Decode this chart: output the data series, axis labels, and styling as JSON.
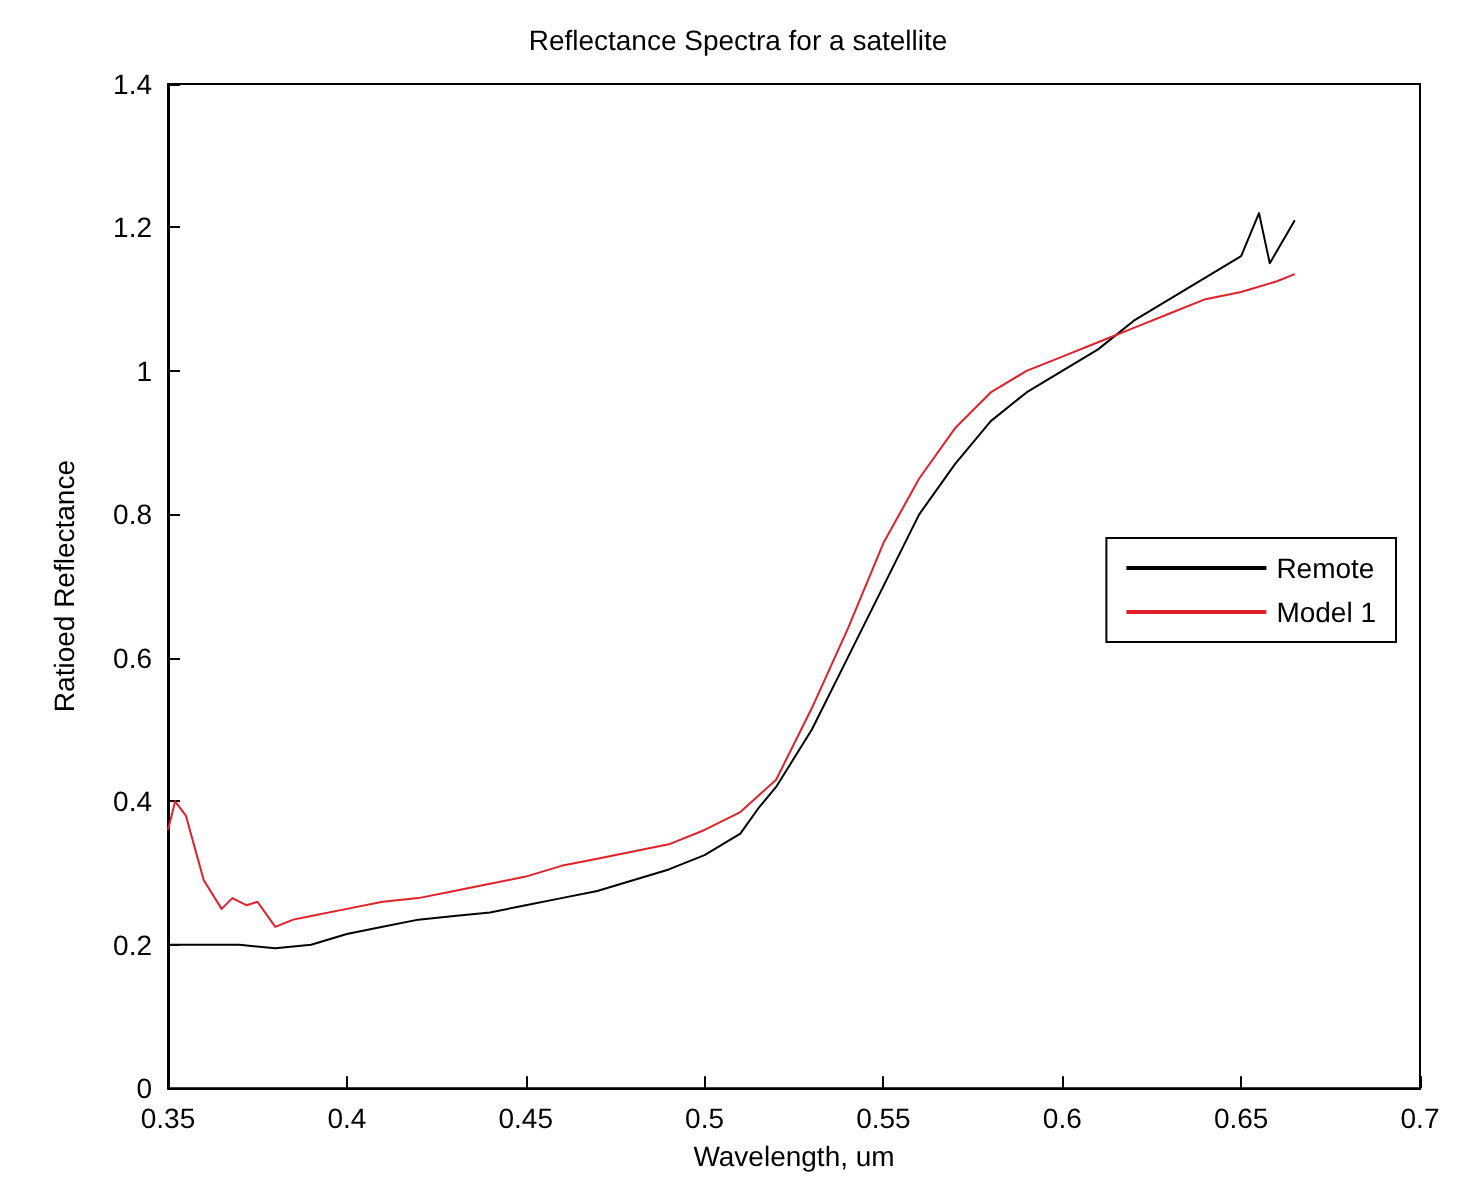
{
  "chart_data": {
    "type": "line",
    "title": "Reflectance Spectra for a satellite",
    "xlabel": "Wavelength, um",
    "ylabel": "Ratioed Reflectance",
    "xlim": [
      0.35,
      0.7
    ],
    "xticks": [
      0.35,
      0.4,
      0.45,
      0.5,
      0.55,
      0.6,
      0.65,
      0.7
    ],
    "ylim": [
      0,
      1.4
    ],
    "yticks": [
      0,
      0.2,
      0.4,
      0.6,
      0.8,
      1,
      1.2,
      1.4
    ],
    "grid": false,
    "legend": "right",
    "marker": "none",
    "line_style": "solid",
    "series": [
      {
        "name": "Remote",
        "color": "#000000",
        "x": [
          0.35,
          0.36,
          0.37,
          0.38,
          0.39,
          0.4,
          0.41,
          0.42,
          0.43,
          0.44,
          0.45,
          0.46,
          0.47,
          0.48,
          0.49,
          0.5,
          0.51,
          0.515,
          0.52,
          0.53,
          0.54,
          0.55,
          0.56,
          0.57,
          0.58,
          0.59,
          0.6,
          0.61,
          0.62,
          0.63,
          0.64,
          0.65,
          0.655,
          0.658,
          0.665
        ],
        "values": [
          0.2,
          0.2,
          0.2,
          0.195,
          0.2,
          0.215,
          0.225,
          0.235,
          0.24,
          0.245,
          0.255,
          0.265,
          0.275,
          0.29,
          0.305,
          0.325,
          0.355,
          0.39,
          0.42,
          0.5,
          0.6,
          0.7,
          0.8,
          0.87,
          0.93,
          0.97,
          1.0,
          1.03,
          1.07,
          1.1,
          1.13,
          1.16,
          1.22,
          1.15,
          1.21
        ]
      },
      {
        "name": "Model 1",
        "color": "#e0202a",
        "x": [
          0.35,
          0.352,
          0.355,
          0.36,
          0.365,
          0.368,
          0.372,
          0.375,
          0.38,
          0.385,
          0.39,
          0.4,
          0.41,
          0.42,
          0.43,
          0.44,
          0.45,
          0.46,
          0.47,
          0.48,
          0.49,
          0.5,
          0.51,
          0.52,
          0.53,
          0.54,
          0.55,
          0.56,
          0.57,
          0.58,
          0.59,
          0.6,
          0.61,
          0.62,
          0.63,
          0.64,
          0.65,
          0.66,
          0.665
        ],
        "values": [
          0.36,
          0.4,
          0.38,
          0.29,
          0.25,
          0.265,
          0.255,
          0.26,
          0.225,
          0.235,
          0.24,
          0.25,
          0.26,
          0.265,
          0.275,
          0.285,
          0.295,
          0.31,
          0.32,
          0.33,
          0.34,
          0.36,
          0.385,
          0.43,
          0.53,
          0.64,
          0.76,
          0.85,
          0.92,
          0.97,
          1.0,
          1.02,
          1.04,
          1.06,
          1.08,
          1.1,
          1.11,
          1.125,
          1.135
        ]
      }
    ]
  }
}
